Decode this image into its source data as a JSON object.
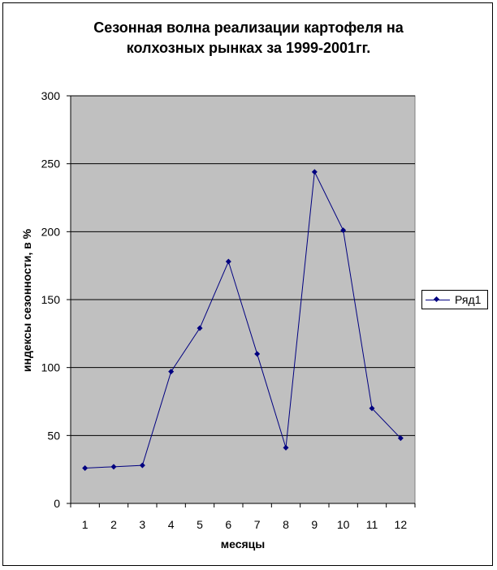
{
  "chart_data": {
    "type": "line",
    "title_line1": "Сезонная волна реализации картофеля на",
    "title_line2": "колхозных рынках за 1999-2001гг.",
    "xlabel": "месяцы",
    "ylabel": "индексы сезонности, в %",
    "categories": [
      "1",
      "2",
      "3",
      "4",
      "5",
      "6",
      "7",
      "8",
      "9",
      "10",
      "11",
      "12"
    ],
    "series": [
      {
        "name": "Ряд1",
        "values": [
          26,
          27,
          28,
          97,
          129,
          178,
          110,
          41,
          244,
          201,
          70,
          48
        ],
        "color": "#000080"
      }
    ],
    "ylim": [
      0,
      300
    ],
    "yticks": [
      0,
      50,
      100,
      150,
      200,
      250,
      300
    ],
    "grid": true,
    "legend_position": "right",
    "plot_background": "#c0c0c0"
  }
}
